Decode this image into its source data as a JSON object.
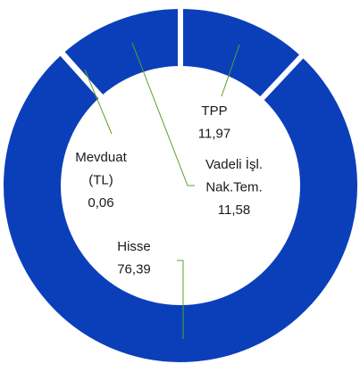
{
  "chart_data": {
    "type": "donut",
    "categories": [
      "TPP",
      "Hisse",
      "Mevduat (TL)",
      "Vadeli İşl. Nak.Tem."
    ],
    "values": [
      11.97,
      76.39,
      0.06,
      11.58
    ],
    "value_labels": [
      "11,97",
      "76,39",
      "0,06",
      "11,58"
    ],
    "color": "#0b3fba"
  }
}
